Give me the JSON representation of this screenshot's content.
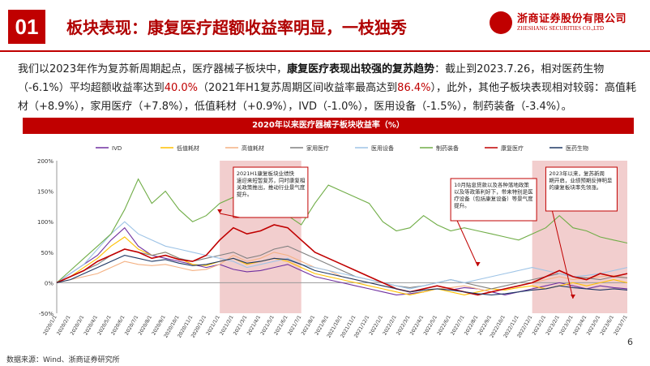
{
  "header": {
    "section_number": "01",
    "title": "板块表现：康复医疗超额收益率明显，一枝独秀",
    "brand_cn": "浙商证券股份有限公司",
    "brand_en": "ZHESHANG SECURITIES CO.,LTD"
  },
  "paragraph": {
    "p1": "我们以2023年作为复苏新周期起点，医疗器械子板块中，",
    "p2_bold": "康复医疗表现出较强的复苏趋势",
    "p3": "：截止到2023.7.26，相对医药生物（-6.1%）平均超额收益率达到",
    "p4_red": "40.0%",
    "p5": "（2021年H1复苏周期区间收益率最高达到",
    "p6_red": "86.4%",
    "p7": "），此外，其他子板块表现相对较弱：高值耗材（+8.9%），家用医疗（+7.8%），低值耗材（+0.9%），IVD（-1.0%），医用设备（-1.5%），制药装备（-3.4%）。"
  },
  "footer": {
    "source": "数据来源：Wind、浙商证券研究所",
    "page": "6"
  },
  "chart_data": {
    "type": "line",
    "title": "2020年以来医疗器械子板块收益率（%）",
    "y_ticks": [
      "200%",
      "150%",
      "100%",
      "50%",
      "0%",
      "-50%"
    ],
    "ylim": [
      -50,
      200
    ],
    "x_ticks": [
      "2020/1/1",
      "2020/2/1",
      "2020/3/1",
      "2020/4/1",
      "2020/5/1",
      "2020/6/1",
      "2020/7/1",
      "2020/8/1",
      "2020/9/1",
      "2020/10/1",
      "2020/11/1",
      "2020/12/1",
      "2021/1/1",
      "2021/2/1",
      "2021/3/1",
      "2021/4/1",
      "2021/5/1",
      "2021/6/1",
      "2021/7/1",
      "2021/8/1",
      "2021/9/1",
      "2021/10/1",
      "2021/11/1",
      "2021/12/1",
      "2022/1/1",
      "2022/2/1",
      "2022/3/1",
      "2022/4/1",
      "2022/5/1",
      "2022/6/1",
      "2022/7/1",
      "2022/8/1",
      "2022/9/1",
      "2022/10/1",
      "2022/11/1",
      "2022/12/1",
      "2023/1/1",
      "2023/2/1",
      "2023/3/1",
      "2023/4/1",
      "2023/5/1",
      "2023/6/1",
      "2023/7/1"
    ],
    "grid": false,
    "legend_position": "top",
    "series": [
      {
        "name": "IVD",
        "color": "#7030a0",
        "values": [
          0,
          15,
          30,
          45,
          70,
          90,
          60,
          45,
          40,
          35,
          30,
          25,
          30,
          22,
          18,
          20,
          25,
          30,
          20,
          10,
          5,
          0,
          -5,
          -10,
          -15,
          -20,
          -18,
          -15,
          -10,
          -12,
          -8,
          -10,
          -15,
          -20,
          -15,
          -10,
          -5,
          0,
          -5,
          -10,
          -5,
          -8,
          -10
        ]
      },
      {
        "name": "低值耗材",
        "color": "#ffc000",
        "values": [
          0,
          10,
          25,
          40,
          60,
          75,
          55,
          45,
          50,
          40,
          30,
          28,
          35,
          40,
          30,
          35,
          40,
          35,
          25,
          15,
          10,
          5,
          0,
          -5,
          -10,
          -15,
          -20,
          -15,
          -10,
          -15,
          -20,
          -15,
          -10,
          -12,
          -8,
          -5,
          -10,
          -5,
          0,
          -5,
          0,
          5,
          0
        ]
      },
      {
        "name": "高值耗材",
        "color": "#f4b183",
        "values": [
          0,
          5,
          10,
          15,
          25,
          35,
          30,
          28,
          30,
          25,
          20,
          22,
          30,
          45,
          35,
          40,
          50,
          45,
          35,
          25,
          20,
          10,
          5,
          0,
          -5,
          -10,
          -15,
          -12,
          -10,
          -8,
          -5,
          -10,
          -15,
          -10,
          -5,
          0,
          5,
          10,
          5,
          8,
          10,
          12,
          8
        ]
      },
      {
        "name": "家用医疗",
        "color": "#808080",
        "values": [
          0,
          10,
          20,
          30,
          45,
          55,
          50,
          45,
          50,
          40,
          35,
          40,
          45,
          50,
          40,
          45,
          55,
          60,
          50,
          40,
          30,
          20,
          10,
          5,
          0,
          -5,
          -8,
          -5,
          0,
          5,
          0,
          -5,
          -10,
          -5,
          0,
          5,
          10,
          15,
          10,
          8,
          5,
          10,
          8
        ]
      },
      {
        "name": "医用设备",
        "color": "#9dc3e6",
        "values": [
          0,
          15,
          30,
          55,
          80,
          100,
          80,
          70,
          60,
          55,
          50,
          45,
          40,
          35,
          25,
          30,
          35,
          40,
          30,
          25,
          20,
          15,
          10,
          5,
          0,
          -5,
          -10,
          -5,
          0,
          5,
          0,
          5,
          10,
          15,
          20,
          25,
          20,
          15,
          10,
          12,
          15,
          20,
          25
        ]
      },
      {
        "name": "制药装备",
        "color": "#70ad47",
        "values": [
          0,
          20,
          40,
          60,
          80,
          120,
          170,
          130,
          150,
          120,
          100,
          110,
          130,
          140,
          110,
          120,
          125,
          110,
          95,
          130,
          160,
          150,
          140,
          130,
          100,
          85,
          90,
          110,
          95,
          85,
          90,
          85,
          80,
          75,
          70,
          80,
          90,
          110,
          90,
          85,
          75,
          70,
          65
        ]
      },
      {
        "name": "康复医疗",
        "color": "#c00000",
        "values": [
          0,
          10,
          20,
          35,
          45,
          55,
          50,
          40,
          45,
          38,
          35,
          45,
          70,
          90,
          80,
          85,
          95,
          90,
          70,
          50,
          40,
          30,
          20,
          10,
          0,
          -10,
          -15,
          -10,
          -5,
          -10,
          -15,
          -20,
          -15,
          -10,
          -5,
          0,
          10,
          20,
          10,
          5,
          15,
          10,
          15
        ]
      },
      {
        "name": "医药生物",
        "color": "#1f3864",
        "values": [
          0,
          5,
          15,
          25,
          35,
          45,
          40,
          35,
          38,
          32,
          28,
          30,
          35,
          40,
          32,
          35,
          40,
          38,
          30,
          20,
          15,
          10,
          5,
          0,
          -5,
          -10,
          -15,
          -12,
          -10,
          -12,
          -15,
          -18,
          -20,
          -18,
          -15,
          -12,
          -10,
          -5,
          -8,
          -10,
          -12,
          -10,
          -12
        ]
      }
    ],
    "shaded_ranges": [
      [
        "2021/1/1",
        "2021/7/1"
      ],
      [
        "2022/12/1",
        "2023/7/1"
      ]
    ],
    "annotations": {
      "a1": "2021H1康复板块业绩快速迎来短暂复苏，同时康复相关政策推出，推动行业景气度提升。",
      "a2": "10月贴息贷款以及各种落地政策以及等政策利好下，带来特别是医疗设备（包括康复设备）等景气度提升。",
      "a2_red": "（包括康复设备）",
      "a3": "2023年以来，复苏新周期开启，业绩预期反弹明显的康复板块率先领涨。"
    }
  }
}
